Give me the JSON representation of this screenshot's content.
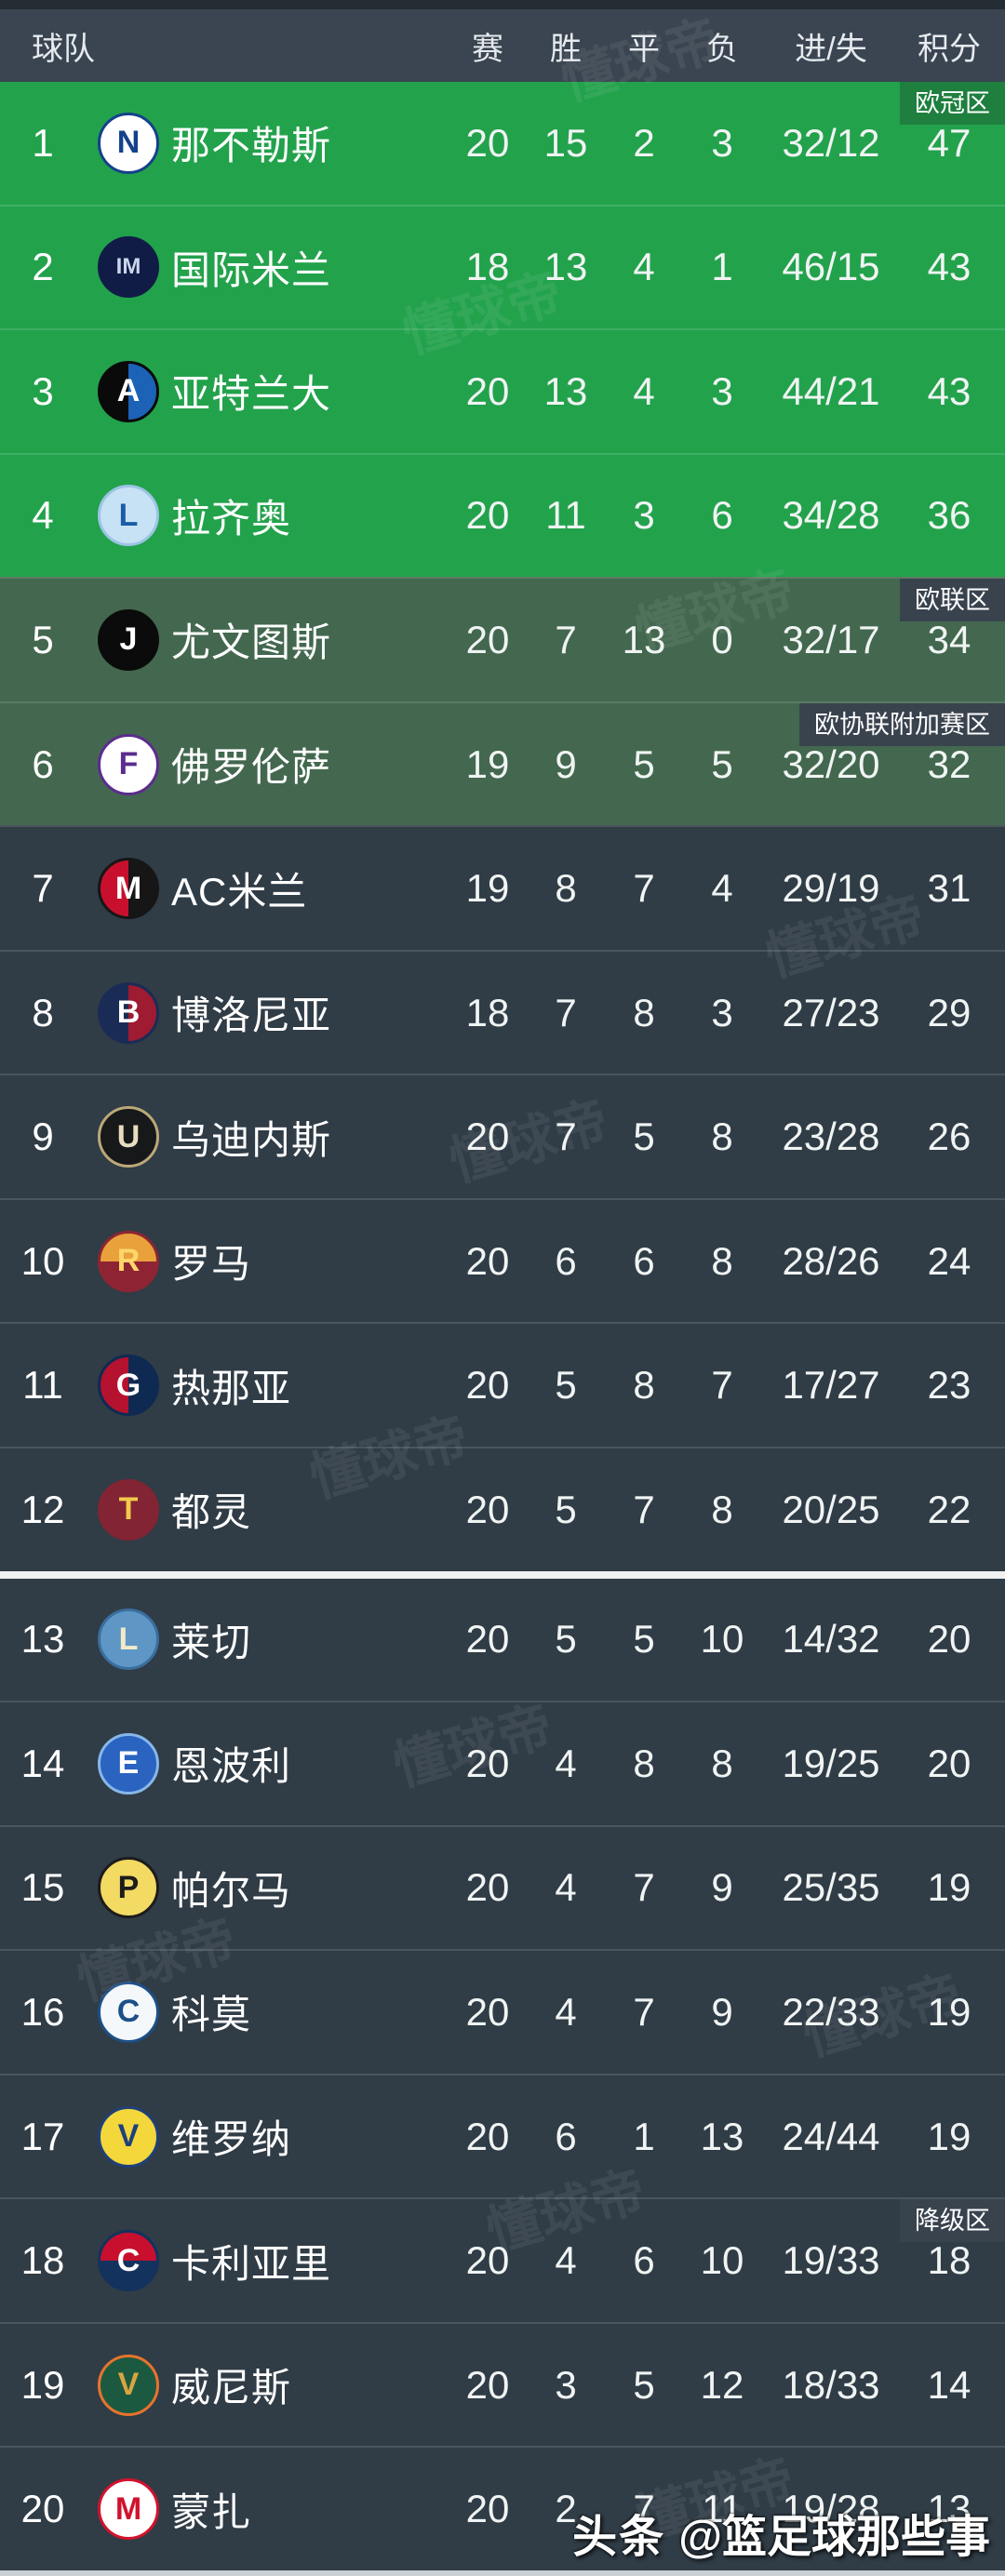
{
  "header": {
    "team": "球队",
    "played": "赛",
    "won": "胜",
    "draw": "平",
    "lost": "负",
    "goals": "进/失",
    "points": "积分"
  },
  "watermarks": {
    "source_brand": "头条",
    "source_account": "@篮足球那些事",
    "site": "懂球帝"
  },
  "colors": {
    "ucl_row_green": "#23A24C",
    "uel_row_green": "#43684F",
    "dark_row": "#303C46",
    "header_bg": "#3A4551",
    "badge_green": "#1E7F3E",
    "badge_dark": "#39434E",
    "section_divider": "#EFF1F2"
  },
  "rows": [
    {
      "rank": "1",
      "name": "那不勒斯",
      "played": "20",
      "won": "15",
      "draw": "2",
      "lost": "3",
      "goals": "32/12",
      "points": "47",
      "section": "ucl",
      "zone": {
        "label": "欧冠区",
        "type": "green"
      },
      "logo": {
        "letter": "N",
        "bg": "#FFFFFF",
        "fg": "#14418C",
        "border": "#14418C"
      }
    },
    {
      "rank": "2",
      "name": "国际米兰",
      "played": "18",
      "won": "13",
      "draw": "4",
      "lost": "1",
      "goals": "46/15",
      "points": "43",
      "section": "ucl",
      "logo": {
        "letter": "IM",
        "bg": "#101C46",
        "fg": "#CBD6EC",
        "border": "#101C46"
      }
    },
    {
      "rank": "3",
      "name": "亚特兰大",
      "played": "20",
      "won": "13",
      "draw": "4",
      "lost": "3",
      "goals": "44/21",
      "points": "43",
      "section": "ucl",
      "logo": {
        "letter": "A",
        "bg": "#0A0A0A",
        "bg2": "#1C63B7",
        "fg": "#FFFFFF",
        "border": "#0A0A0A"
      }
    },
    {
      "rank": "4",
      "name": "拉齐奥",
      "played": "20",
      "won": "11",
      "draw": "3",
      "lost": "6",
      "goals": "34/28",
      "points": "36",
      "section": "ucl",
      "logo": {
        "letter": "L",
        "bg": "#C7E2F5",
        "fg": "#1B5CA5",
        "border": "#9CC4E4"
      }
    },
    {
      "rank": "5",
      "name": "尤文图斯",
      "played": "20",
      "won": "7",
      "draw": "13",
      "lost": "0",
      "goals": "32/17",
      "points": "34",
      "section": "uel",
      "zone": {
        "label": "欧联区",
        "type": "dark"
      },
      "logo": {
        "letter": "J",
        "bg": "#0B0B0B",
        "fg": "#FFFFFF",
        "border": "#0B0B0B"
      }
    },
    {
      "rank": "6",
      "name": "佛罗伦萨",
      "played": "19",
      "won": "9",
      "draw": "5",
      "lost": "5",
      "goals": "32/20",
      "points": "32",
      "section": "uel",
      "zone": {
        "label": "欧协联附加赛区",
        "type": "dark"
      },
      "logo": {
        "letter": "F",
        "bg": "#FFFFFF",
        "fg": "#5B2D8E",
        "border": "#5B2D8E"
      }
    },
    {
      "rank": "7",
      "name": "AC米兰",
      "played": "19",
      "won": "8",
      "draw": "7",
      "lost": "4",
      "goals": "29/19",
      "points": "31",
      "section": "dark",
      "logo": {
        "letter": "M",
        "bg": "#C8102E",
        "bg2": "#161616",
        "fg": "#FFFFFF",
        "border": "#161616"
      }
    },
    {
      "rank": "8",
      "name": "博洛尼亚",
      "played": "18",
      "won": "7",
      "draw": "8",
      "lost": "3",
      "goals": "27/23",
      "points": "29",
      "section": "dark",
      "logo": {
        "letter": "B",
        "bg": "#1A2C56",
        "bg2": "#9E1B32",
        "fg": "#FFFFFF",
        "border": "#1A2C56"
      }
    },
    {
      "rank": "9",
      "name": "乌迪内斯",
      "played": "20",
      "won": "7",
      "draw": "5",
      "lost": "8",
      "goals": "23/28",
      "points": "26",
      "section": "dark",
      "logo": {
        "letter": "U",
        "bg": "#17181A",
        "fg": "#E8DCC0",
        "border": "#BBA878"
      }
    },
    {
      "rank": "10",
      "name": "罗马",
      "played": "20",
      "won": "6",
      "draw": "6",
      "lost": "8",
      "goals": "28/26",
      "points": "24",
      "section": "dark",
      "logo": {
        "letter": "R",
        "bg": "#E9A13B",
        "bg2": "#8E2433",
        "dir": "h",
        "fg": "#FFD66B",
        "border": "#8E2433"
      }
    },
    {
      "rank": "11",
      "name": "热那亚",
      "played": "20",
      "won": "5",
      "draw": "8",
      "lost": "7",
      "goals": "17/27",
      "points": "23",
      "section": "dark",
      "logo": {
        "letter": "G",
        "bg": "#B5122F",
        "bg2": "#0E2A52",
        "fg": "#FFFFFF",
        "border": "#0E2A52"
      }
    },
    {
      "rank": "12",
      "name": "都灵",
      "played": "20",
      "won": "5",
      "draw": "7",
      "lost": "8",
      "goals": "20/25",
      "points": "22",
      "section": "dark",
      "logo": {
        "letter": "T",
        "bg": "#822433",
        "fg": "#F2C94C",
        "border": "#822433"
      }
    },
    {
      "rank": "13",
      "name": "莱切",
      "played": "20",
      "won": "5",
      "draw": "5",
      "lost": "10",
      "goals": "14/32",
      "points": "20",
      "section": "dark",
      "gap_above": true,
      "zone_label": null,
      "logo": {
        "letter": "L",
        "bg": "#5E97C5",
        "fg": "#F2E9C9",
        "border": "#3A6E9E"
      }
    },
    {
      "rank": "14",
      "name": "恩波利",
      "played": "20",
      "won": "4",
      "draw": "8",
      "lost": "8",
      "goals": "19/25",
      "points": "20",
      "section": "dark",
      "logo": {
        "letter": "E",
        "bg": "#2A63C0",
        "fg": "#FFFFFF",
        "border": "#87B7E8"
      }
    },
    {
      "rank": "15",
      "name": "帕尔马",
      "played": "20",
      "won": "4",
      "draw": "7",
      "lost": "9",
      "goals": "25/35",
      "points": "19",
      "section": "dark",
      "logo": {
        "letter": "P",
        "bg": "#F2DA63",
        "fg": "#1C1C1C",
        "border": "#1C1C1C"
      }
    },
    {
      "rank": "16",
      "name": "科莫",
      "played": "20",
      "won": "4",
      "draw": "7",
      "lost": "9",
      "goals": "22/33",
      "points": "19",
      "section": "dark",
      "logo": {
        "letter": "C",
        "bg": "#F4F8FB",
        "fg": "#1C4F86",
        "border": "#1C4F86"
      }
    },
    {
      "rank": "17",
      "name": "维罗纳",
      "played": "20",
      "won": "6",
      "draw": "1",
      "lost": "13",
      "goals": "24/44",
      "points": "19",
      "section": "dark",
      "logo": {
        "letter": "V",
        "bg": "#F3D73B",
        "fg": "#20407A",
        "border": "#20407A"
      }
    },
    {
      "rank": "18",
      "name": "卡利亚里",
      "played": "20",
      "won": "4",
      "draw": "6",
      "lost": "10",
      "goals": "19/33",
      "points": "18",
      "section": "dark",
      "zone": {
        "label": "降级区",
        "type": "dark"
      },
      "logo": {
        "letter": "C",
        "bg": "#C8102E",
        "bg2": "#14325E",
        "dir": "h",
        "fg": "#FFFFFF",
        "border": "#14325E"
      }
    },
    {
      "rank": "19",
      "name": "威尼斯",
      "played": "20",
      "won": "3",
      "draw": "5",
      "lost": "12",
      "goals": "18/33",
      "points": "14",
      "section": "dark",
      "logo": {
        "letter": "V",
        "bg": "#1B5A40",
        "fg": "#D9A441",
        "border": "#E8732E"
      }
    },
    {
      "rank": "20",
      "name": "蒙扎",
      "played": "20",
      "won": "2",
      "draw": "7",
      "lost": "11",
      "goals": "19/28",
      "points": "13",
      "section": "dark",
      "logo": {
        "letter": "M",
        "bg": "#FFFFFF",
        "fg": "#D2122E",
        "border": "#D2122E"
      }
    }
  ]
}
